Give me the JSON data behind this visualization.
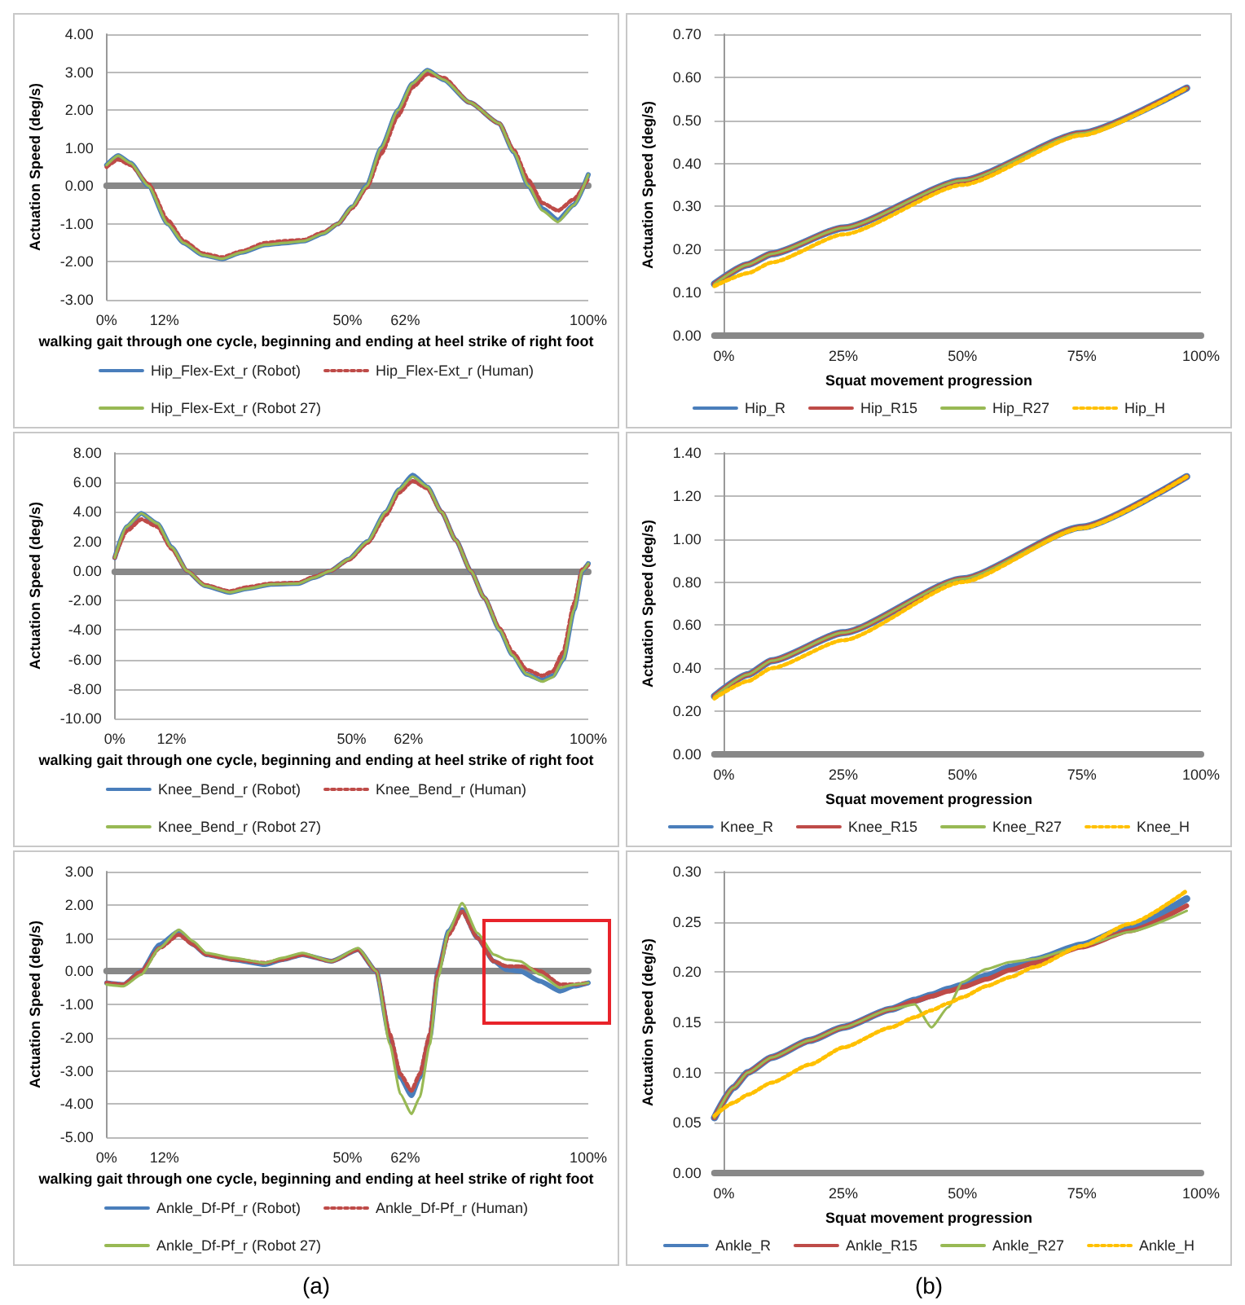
{
  "chart_data": [
    {
      "type": "line",
      "ylabel": "Actuation Speed (deg/s)",
      "xlabel": "walking gait through one cycle, beginning and ending at heel strike of right foot",
      "x": [
        0,
        2.4,
        5,
        8.7,
        12.7,
        16,
        20,
        24,
        28,
        33,
        37,
        41,
        45,
        48,
        51,
        54,
        57,
        60.5,
        63.5,
        66.6,
        70,
        75.4,
        81.5,
        84.5,
        87.6,
        90.5,
        93.7,
        97,
        100
      ],
      "xlim": [
        0,
        100
      ],
      "xticks": [
        {
          "value": 0,
          "label": "0%"
        },
        {
          "value": 12,
          "label": "12%"
        },
        {
          "value": 50,
          "label": "50%"
        },
        {
          "value": 62,
          "label": "62%"
        },
        {
          "value": 100,
          "label": "100%"
        }
      ],
      "ylim": [
        -3,
        4
      ],
      "yticks": [
        {
          "value": -3,
          "label": "-3.00"
        },
        {
          "value": -2,
          "label": "-2.00"
        },
        {
          "value": -1,
          "label": "-1.00"
        },
        {
          "value": 0,
          "label": "0.00"
        },
        {
          "value": 1,
          "label": "1.00"
        },
        {
          "value": 2,
          "label": "2.00"
        },
        {
          "value": 3,
          "label": "3.00"
        },
        {
          "value": 4,
          "label": "4.00"
        }
      ],
      "grid": "y",
      "legend": "bottom",
      "marker": "none",
      "series": [
        {
          "name": "Hip_Flex-Ext_r (Robot)",
          "color": "#4a7ebb",
          "line_style": "solid",
          "values": [
            0.55,
            0.8,
            0.6,
            0,
            -1,
            -1.5,
            -1.82,
            -1.92,
            -1.75,
            -1.55,
            -1.5,
            -1.45,
            -1.25,
            -1.0,
            -0.55,
            0,
            1.0,
            2.0,
            2.7,
            3.05,
            2.8,
            2.2,
            1.65,
            0.9,
            0,
            -0.6,
            -0.9,
            -0.5,
            0.3
          ]
        },
        {
          "name": "Hip_Flex-Ext_r (Human)",
          "color": "#be4b48",
          "line_style": "dotted",
          "values": [
            0.5,
            0.7,
            0.55,
            0.05,
            -0.9,
            -1.45,
            -1.78,
            -1.88,
            -1.72,
            -1.5,
            -1.45,
            -1.42,
            -1.22,
            -1.0,
            -0.58,
            -0.05,
            0.85,
            1.85,
            2.6,
            2.95,
            2.85,
            2.2,
            1.65,
            0.95,
            0.15,
            -0.45,
            -0.65,
            -0.35,
            0.2
          ]
        },
        {
          "name": "Hip_Flex-Ext_r (Robot 27)",
          "color": "#98b954",
          "line_style": "solid",
          "values": [
            0.55,
            0.8,
            0.6,
            0,
            -1,
            -1.5,
            -1.82,
            -1.92,
            -1.75,
            -1.55,
            -1.5,
            -1.45,
            -1.25,
            -1.0,
            -0.55,
            0,
            1.0,
            2.0,
            2.7,
            3.05,
            2.8,
            2.2,
            1.65,
            0.9,
            0,
            -0.65,
            -0.95,
            -0.5,
            0.3
          ]
        }
      ]
    },
    {
      "type": "line",
      "ylabel": "Actuation Speed (deg/s)",
      "xlabel": "Squat movement progression",
      "x": [
        -2,
        5,
        10,
        25,
        50,
        75,
        97
      ],
      "xlim": [
        -2,
        100
      ],
      "xticks": [
        {
          "value": 0,
          "label": "0%"
        },
        {
          "value": 25,
          "label": "25%"
        },
        {
          "value": 50,
          "label": "50%"
        },
        {
          "value": 75,
          "label": "75%"
        },
        {
          "value": 100,
          "label": "100%"
        }
      ],
      "ylim": [
        0,
        0.7
      ],
      "yticks": [
        {
          "value": 0,
          "label": "0.00"
        },
        {
          "value": 0.1,
          "label": "0.10"
        },
        {
          "value": 0.2,
          "label": "0.20"
        },
        {
          "value": 0.3,
          "label": "0.30"
        },
        {
          "value": 0.4,
          "label": "0.40"
        },
        {
          "value": 0.5,
          "label": "0.50"
        },
        {
          "value": 0.6,
          "label": "0.60"
        },
        {
          "value": 0.7,
          "label": "0.70"
        }
      ],
      "grid": "y",
      "legend": "bottom",
      "marker": "none",
      "series": [
        {
          "name": "Hip_R",
          "color": "#4a7ebb",
          "line_style": "solid",
          "values": [
            0.12,
            0.165,
            0.19,
            0.25,
            0.36,
            0.47,
            0.575
          ]
        },
        {
          "name": "Hip_R15",
          "color": "#be4b48",
          "line_style": "solid",
          "values": [
            0.12,
            0.165,
            0.19,
            0.25,
            0.36,
            0.47,
            0.575
          ]
        },
        {
          "name": "Hip_R27",
          "color": "#98b954",
          "line_style": "solid",
          "values": [
            0.12,
            0.165,
            0.19,
            0.25,
            0.36,
            0.47,
            0.575
          ]
        },
        {
          "name": "Hip_H",
          "color": "#ffc000",
          "line_style": "dotted",
          "values": [
            0.115,
            0.145,
            0.17,
            0.235,
            0.35,
            0.465,
            0.575
          ]
        }
      ]
    },
    {
      "type": "line",
      "ylabel": "Actuation Speed (deg/s)",
      "xlabel": "walking gait through one cycle, beginning and ending at heel strike of right foot",
      "x": [
        0,
        2.5,
        5.6,
        9,
        12,
        15.3,
        19,
        24.3,
        28,
        33,
        38.8,
        42,
        45.5,
        49.4,
        53.4,
        57.3,
        60,
        62.9,
        66,
        69,
        72,
        75.2,
        78,
        81.3,
        84,
        87,
        90.3,
        92.5,
        94.7,
        97,
        98.7,
        100
      ],
      "xlim": [
        0,
        100
      ],
      "xticks": [
        {
          "value": 0,
          "label": "0%"
        },
        {
          "value": 12,
          "label": "12%"
        },
        {
          "value": 50,
          "label": "50%"
        },
        {
          "value": 62,
          "label": "62%"
        },
        {
          "value": 100,
          "label": "100%"
        }
      ],
      "ylim": [
        -10,
        8
      ],
      "yticks": [
        {
          "value": -10,
          "label": "-10.00"
        },
        {
          "value": -8,
          "label": "-8.00"
        },
        {
          "value": -6,
          "label": "-6.00"
        },
        {
          "value": -4,
          "label": "-4.00"
        },
        {
          "value": -2,
          "label": "-2.00"
        },
        {
          "value": 0,
          "label": "0.00"
        },
        {
          "value": 2,
          "label": "2.00"
        },
        {
          "value": 4,
          "label": "4.00"
        },
        {
          "value": 6,
          "label": "6.00"
        },
        {
          "value": 8,
          "label": "8.00"
        }
      ],
      "grid": "y",
      "legend": "bottom",
      "marker": "none",
      "series": [
        {
          "name": "Knee_Bend_r (Robot)",
          "color": "#4a7ebb",
          "line_style": "solid",
          "values": [
            0.9,
            3,
            3.9,
            3.2,
            1.6,
            0,
            -1.0,
            -1.45,
            -1.2,
            -0.9,
            -0.85,
            -0.45,
            0,
            0.8,
            2.0,
            4.0,
            5.5,
            6.5,
            5.7,
            4.0,
            2.1,
            0,
            -1.8,
            -4.0,
            -5.7,
            -7.0,
            -7.4,
            -7.1,
            -6.0,
            -2.6,
            0,
            0.5
          ]
        },
        {
          "name": "Knee_Bend_r (Human)",
          "color": "#be4b48",
          "line_style": "dotted",
          "values": [
            0.9,
            2.7,
            3.5,
            3.0,
            1.5,
            0,
            -0.95,
            -1.38,
            -1.1,
            -0.85,
            -0.8,
            -0.4,
            0,
            0.75,
            1.9,
            3.8,
            5.3,
            6.1,
            5.6,
            4.0,
            2.1,
            0,
            -1.8,
            -3.9,
            -5.5,
            -6.7,
            -7.1,
            -6.8,
            -5.5,
            -2.2,
            0.1,
            0.4
          ]
        },
        {
          "name": "Knee_Bend_r (Robot 27)",
          "color": "#98b954",
          "line_style": "solid",
          "values": [
            0.9,
            3,
            3.9,
            3.2,
            1.6,
            0,
            -1.0,
            -1.45,
            -1.2,
            -0.9,
            -0.85,
            -0.45,
            0,
            0.8,
            2.0,
            4.0,
            5.5,
            6.4,
            5.7,
            4.0,
            2.1,
            0,
            -1.8,
            -4.0,
            -5.7,
            -7.0,
            -7.5,
            -7.2,
            -6.0,
            -2.6,
            0,
            0.5
          ]
        }
      ]
    },
    {
      "type": "line",
      "ylabel": "Actuation Speed (deg/s)",
      "xlabel": "Squat movement progression",
      "x": [
        -2,
        5,
        10,
        25,
        50,
        75,
        97
      ],
      "xlim": [
        -2,
        100
      ],
      "xticks": [
        {
          "value": 0,
          "label": "0%"
        },
        {
          "value": 25,
          "label": "25%"
        },
        {
          "value": 50,
          "label": "50%"
        },
        {
          "value": 75,
          "label": "75%"
        },
        {
          "value": 100,
          "label": "100%"
        }
      ],
      "ylim": [
        0,
        1.4
      ],
      "yticks": [
        {
          "value": 0,
          "label": "0.00"
        },
        {
          "value": 0.2,
          "label": "0.20"
        },
        {
          "value": 0.4,
          "label": "0.40"
        },
        {
          "value": 0.6,
          "label": "0.60"
        },
        {
          "value": 0.8,
          "label": "0.80"
        },
        {
          "value": 1.0,
          "label": "1.00"
        },
        {
          "value": 1.2,
          "label": "1.20"
        },
        {
          "value": 1.4,
          "label": "1.40"
        }
      ],
      "grid": "y",
      "legend": "bottom",
      "marker": "none",
      "series": [
        {
          "name": "Knee_R",
          "color": "#4a7ebb",
          "line_style": "solid",
          "values": [
            0.27,
            0.37,
            0.435,
            0.565,
            0.815,
            1.055,
            1.29
          ]
        },
        {
          "name": "Knee_R15",
          "color": "#be4b48",
          "line_style": "solid",
          "values": [
            0.27,
            0.37,
            0.435,
            0.565,
            0.815,
            1.055,
            1.29
          ]
        },
        {
          "name": "Knee_R27",
          "color": "#98b954",
          "line_style": "solid",
          "values": [
            0.27,
            0.37,
            0.435,
            0.565,
            0.815,
            1.055,
            1.29
          ]
        },
        {
          "name": "Knee_H",
          "color": "#ffc000",
          "line_style": "dotted",
          "values": [
            0.26,
            0.34,
            0.4,
            0.53,
            0.8,
            1.05,
            1.29
          ]
        }
      ]
    },
    {
      "type": "line",
      "ylabel": "Actuation Speed (deg/s)",
      "xlabel": "walking gait through one cycle, beginning and ending at heel strike of right foot",
      "annotations": [
        "(a)"
      ],
      "x": [
        0,
        3.5,
        7.2,
        11,
        15,
        18,
        20.7,
        26.2,
        32.9,
        36.5,
        40.6,
        46.7,
        52.2,
        56,
        58.8,
        61,
        63.3,
        65,
        67.1,
        68.8,
        71,
        73.8,
        77,
        80.4,
        83,
        85.9,
        90,
        94.2,
        97,
        100
      ],
      "xlim": [
        0,
        100
      ],
      "xticks": [
        {
          "value": 0,
          "label": "0%"
        },
        {
          "value": 12,
          "label": "12%"
        },
        {
          "value": 50,
          "label": "50%"
        },
        {
          "value": 62,
          "label": "62%"
        },
        {
          "value": 100,
          "label": "100%"
        }
      ],
      "ylim": [
        -5,
        3
      ],
      "yticks": [
        {
          "value": -5,
          "label": "-5.00"
        },
        {
          "value": -4,
          "label": "-4.00"
        },
        {
          "value": -3,
          "label": "-3.00"
        },
        {
          "value": -2,
          "label": "-2.00"
        },
        {
          "value": -1,
          "label": "-1.00"
        },
        {
          "value": 0,
          "label": "0.00"
        },
        {
          "value": 1,
          "label": "1.00"
        },
        {
          "value": 2,
          "label": "2.00"
        },
        {
          "value": 3,
          "label": "3.00"
        }
      ],
      "grid": "y",
      "legend": "bottom",
      "marker": "none",
      "series": [
        {
          "name": "Ankle_Df-Pf_r (Robot)",
          "color": "#4a7ebb",
          "line_style": "solid",
          "values": [
            -0.35,
            -0.4,
            0,
            0.8,
            1.2,
            0.8,
            0.5,
            0.35,
            0.2,
            0.35,
            0.5,
            0.3,
            0.65,
            0,
            -2,
            -3.2,
            -3.75,
            -3.2,
            -2,
            0,
            1.2,
            1.85,
            1.0,
            0.3,
            0.05,
            0,
            -0.3,
            -0.6,
            -0.45,
            -0.35
          ]
        },
        {
          "name": "Ankle_Df-Pf_r (Human)",
          "color": "#be4b48",
          "line_style": "dotted",
          "values": [
            -0.35,
            -0.4,
            0,
            0.7,
            1.1,
            0.8,
            0.5,
            0.35,
            0.25,
            0.35,
            0.5,
            0.3,
            0.65,
            0,
            -1.9,
            -3.1,
            -3.6,
            -3.1,
            -1.9,
            0,
            1.1,
            1.8,
            1.0,
            0.3,
            0.15,
            0.15,
            0,
            -0.4,
            -0.4,
            -0.35
          ]
        },
        {
          "name": "Ankle_Df-Pf_r (Robot 27)",
          "color": "#98b954",
          "line_style": "solid",
          "values": [
            -0.4,
            -0.45,
            -0.1,
            0.7,
            1.25,
            0.9,
            0.55,
            0.4,
            0.25,
            0.4,
            0.55,
            0.3,
            0.7,
            0,
            -2.2,
            -3.7,
            -4.3,
            -3.8,
            -2.2,
            -0.2,
            1.2,
            2.05,
            1.15,
            0.5,
            0.35,
            0.3,
            -0.1,
            -0.5,
            -0.4,
            -0.35
          ]
        }
      ]
    },
    {
      "type": "line",
      "ylabel": "Actuation Speed (deg/s)",
      "xlabel": "Squat movement progression",
      "annotations": [
        "(b)"
      ],
      "x": [
        -2,
        2,
        5,
        10,
        18,
        25,
        35,
        40,
        43.5,
        47,
        50,
        55,
        60,
        65,
        75,
        85,
        97
      ],
      "xlim": [
        -2,
        100
      ],
      "xticks": [
        {
          "value": 0,
          "label": "0%"
        },
        {
          "value": 25,
          "label": "25%"
        },
        {
          "value": 50,
          "label": "50%"
        },
        {
          "value": 75,
          "label": "75%"
        },
        {
          "value": 100,
          "label": "100%"
        }
      ],
      "ylim": [
        0,
        0.3
      ],
      "yticks": [
        {
          "value": 0,
          "label": "0.00"
        },
        {
          "value": 0.05,
          "label": "0.05"
        },
        {
          "value": 0.1,
          "label": "0.10"
        },
        {
          "value": 0.15,
          "label": "0.15"
        },
        {
          "value": 0.2,
          "label": "0.20"
        },
        {
          "value": 0.25,
          "label": "0.25"
        },
        {
          "value": 0.3,
          "label": "0.30"
        }
      ],
      "grid": "y",
      "legend": "bottom",
      "marker": "none",
      "series": [
        {
          "name": "Ankle_R",
          "color": "#4a7ebb",
          "line_style": "solid",
          "values": [
            0.055,
            0.085,
            0.1,
            0.115,
            0.132,
            0.145,
            0.163,
            0.172,
            0.177,
            0.183,
            0.187,
            0.196,
            0.205,
            0.212,
            0.227,
            0.245,
            0.273
          ]
        },
        {
          "name": "Ankle_R15",
          "color": "#be4b48",
          "line_style": "solid",
          "values": [
            0.055,
            0.085,
            0.1,
            0.115,
            0.132,
            0.145,
            0.163,
            0.171,
            0.176,
            0.181,
            0.185,
            0.193,
            0.202,
            0.209,
            0.225,
            0.241,
            0.266
          ]
        },
        {
          "name": "Ankle_R27",
          "color": "#98b954",
          "line_style": "solid",
          "values": [
            0.055,
            0.085,
            0.1,
            0.115,
            0.132,
            0.145,
            0.163,
            0.168,
            0.145,
            0.165,
            0.19,
            0.203,
            0.21,
            0.213,
            0.226,
            0.24,
            0.261
          ]
        },
        {
          "name": "Ankle_H",
          "color": "#ffc000",
          "line_style": "dotted",
          "values": [
            0.057,
            0.07,
            0.078,
            0.09,
            0.108,
            0.125,
            0.145,
            0.155,
            0.162,
            0.169,
            0.175,
            0.186,
            0.195,
            0.205,
            0.226,
            0.248,
            0.281
          ]
        }
      ]
    }
  ]
}
